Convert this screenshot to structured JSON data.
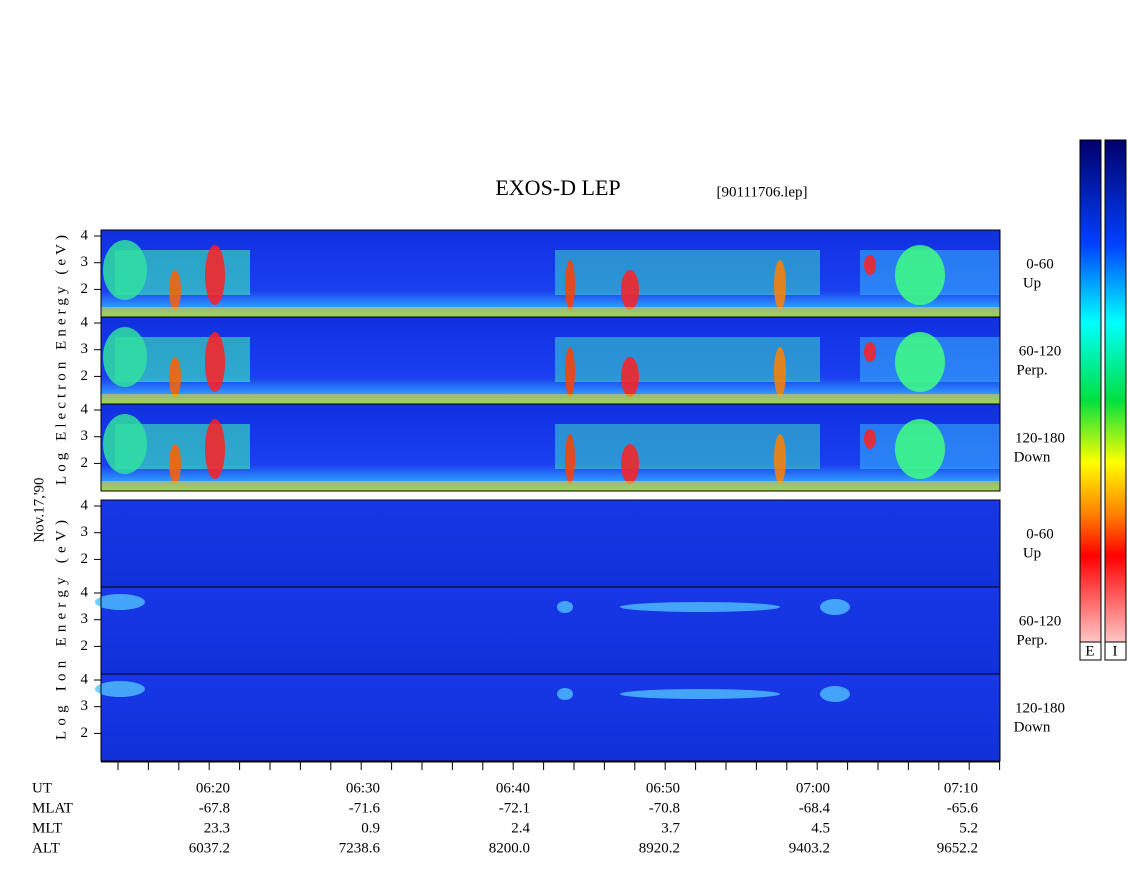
{
  "header": {
    "title": "EXOS-D LEP",
    "file": "[90111706.lep]"
  },
  "panels": [
    {
      "pitch": "0-60",
      "dir": "Up",
      "yticks": [
        "4",
        "3",
        "2"
      ]
    },
    {
      "pitch": "60-120",
      "dir": "Perp.",
      "yticks": [
        "4",
        "3",
        "2"
      ]
    },
    {
      "pitch": "120-180",
      "dir": "Down",
      "yticks": [
        "4",
        "3",
        "2"
      ]
    },
    {
      "pitch": "0-60",
      "dir": "Up",
      "yticks": [
        "4",
        "3",
        "2"
      ]
    },
    {
      "pitch": "60-120",
      "dir": "Perp.",
      "yticks": [
        "4",
        "3",
        "2"
      ]
    },
    {
      "pitch": "120-180",
      "dir": "Down",
      "yticks": [
        "4",
        "3",
        "2"
      ]
    }
  ],
  "labels": {
    "electron": "Log Electron Energy (eV)",
    "date": "Nov.17,'90",
    "ion": "Log Ion Energy (eV)"
  },
  "colorbar": [
    "E",
    "I"
  ],
  "table": {
    "rows": [
      [
        "UT",
        "06:20",
        "06:30",
        "06:40",
        "06:50",
        "07:00",
        "07:10"
      ],
      [
        "MLAT",
        "-67.8",
        "-71.6",
        "-72.1",
        "-70.8",
        "-68.4",
        "-65.6"
      ],
      [
        "MLT",
        "23.3",
        "0.9",
        "2.4",
        "3.7",
        "4.5",
        "5.2"
      ],
      [
        "ALT",
        "6037.2",
        "7238.6",
        "8200.0",
        "8920.2",
        "9403.2",
        "9652.2"
      ]
    ]
  }
}
